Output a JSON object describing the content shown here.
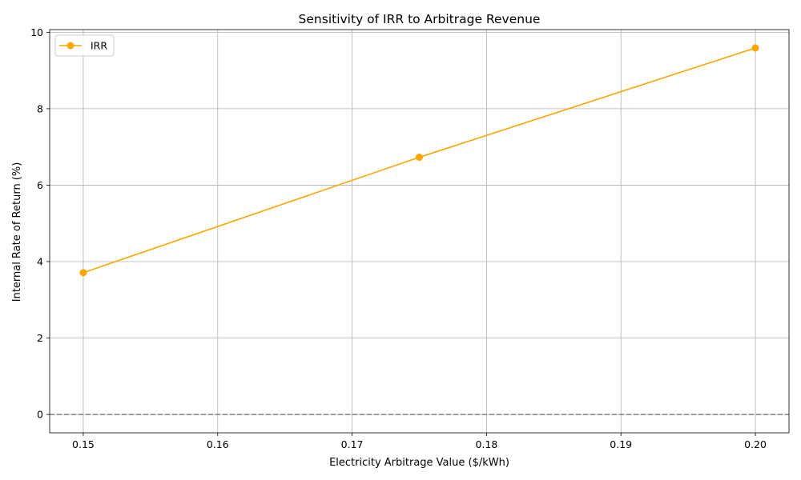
{
  "chart_data": {
    "type": "line",
    "title": "Sensitivity of IRR to Arbitrage Revenue",
    "xlabel": "Electricity Arbitrage Value ($/kWh)",
    "ylabel": "Internal Rate of Return (%)",
    "xlim": [
      0.1475,
      0.2025
    ],
    "ylim": [
      -0.48,
      10.07
    ],
    "xticks": [
      0.15,
      0.16,
      0.17,
      0.18,
      0.19,
      0.2
    ],
    "xtick_labels": [
      "0.15",
      "0.16",
      "0.17",
      "0.18",
      "0.19",
      "0.20"
    ],
    "yticks": [
      0,
      2,
      4,
      6,
      8,
      10
    ],
    "ytick_labels": [
      "0",
      "2",
      "4",
      "6",
      "8",
      "10"
    ],
    "grid": true,
    "legend_position": "top-left",
    "reference_line": {
      "y": 0,
      "style": "dashed",
      "color": "#808080"
    },
    "series": [
      {
        "name": "IRR",
        "color": "#FFA500",
        "marker": "circle",
        "x": [
          0.15,
          0.175,
          0.2
        ],
        "y": [
          3.71,
          6.73,
          9.59
        ]
      }
    ]
  }
}
